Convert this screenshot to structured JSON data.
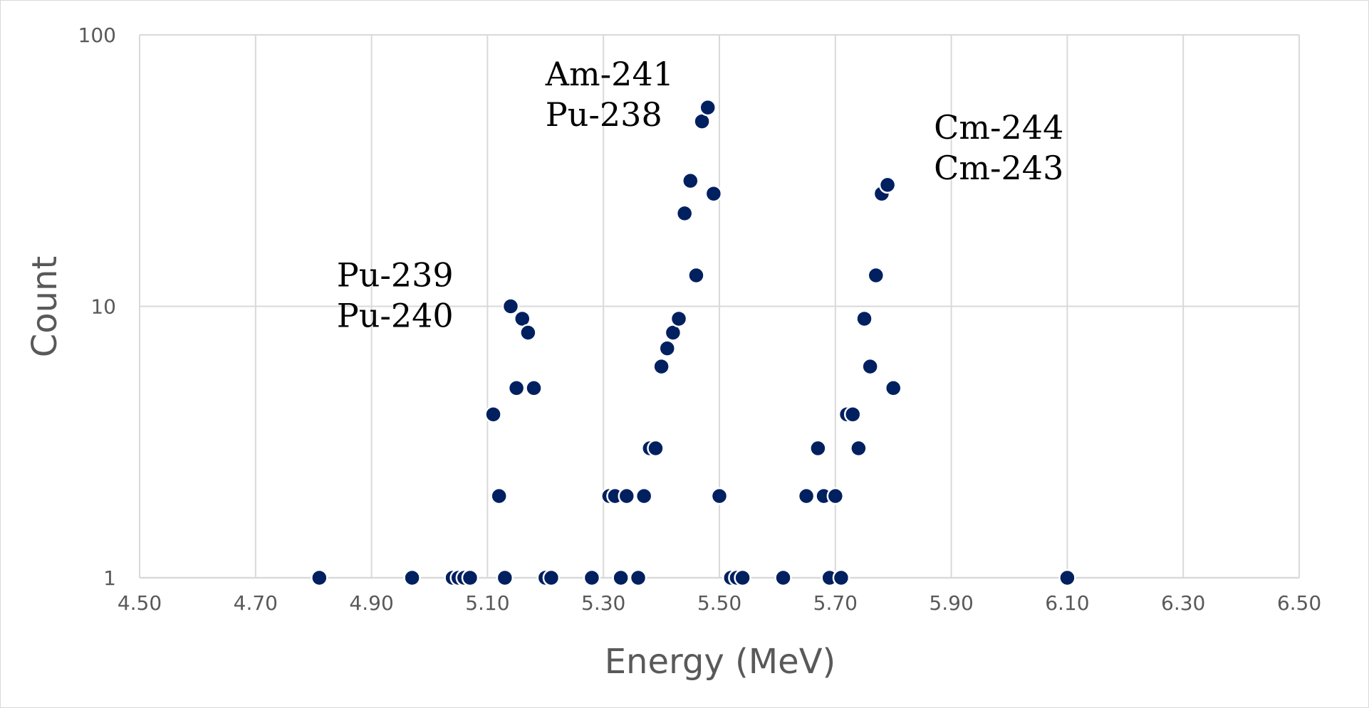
{
  "chart_data": {
    "type": "scatter",
    "title": "",
    "xlabel": "Energy (MeV)",
    "ylabel": "Count",
    "xlim": [
      4.5,
      6.5
    ],
    "ylim": [
      1,
      100
    ],
    "yscale": "log",
    "grid": true,
    "legend": "none",
    "x_ticks": [
      "4.50",
      "4.70",
      "4.90",
      "5.10",
      "5.30",
      "5.50",
      "5.70",
      "5.90",
      "6.10",
      "6.30",
      "6.50"
    ],
    "y_ticks": [
      "1",
      "10",
      "100"
    ],
    "marker_color": "#002060",
    "annotations": [
      {
        "lines": [
          "Pu-239",
          "Pu-240"
        ],
        "x": 4.84,
        "y": 10
      },
      {
        "lines": [
          "Am-241",
          "Pu-238"
        ],
        "x": 5.2,
        "y": 55
      },
      {
        "lines": [
          "Cm-244",
          "Cm-243"
        ],
        "x": 5.87,
        "y": 35
      }
    ],
    "series": [
      {
        "name": "Counts",
        "points": [
          {
            "x": 4.81,
            "y": 1
          },
          {
            "x": 4.97,
            "y": 1
          },
          {
            "x": 5.04,
            "y": 1
          },
          {
            "x": 5.05,
            "y": 1
          },
          {
            "x": 5.06,
            "y": 1
          },
          {
            "x": 5.07,
            "y": 1
          },
          {
            "x": 5.13,
            "y": 1
          },
          {
            "x": 5.2,
            "y": 1
          },
          {
            "x": 5.21,
            "y": 1
          },
          {
            "x": 5.28,
            "y": 1
          },
          {
            "x": 5.33,
            "y": 1
          },
          {
            "x": 5.36,
            "y": 1
          },
          {
            "x": 5.52,
            "y": 1
          },
          {
            "x": 5.53,
            "y": 1
          },
          {
            "x": 5.54,
            "y": 1
          },
          {
            "x": 5.61,
            "y": 1
          },
          {
            "x": 5.69,
            "y": 1
          },
          {
            "x": 5.71,
            "y": 1
          },
          {
            "x": 6.1,
            "y": 1
          },
          {
            "x": 5.11,
            "y": 4
          },
          {
            "x": 5.12,
            "y": 2
          },
          {
            "x": 5.14,
            "y": 10
          },
          {
            "x": 5.15,
            "y": 5
          },
          {
            "x": 5.16,
            "y": 9
          },
          {
            "x": 5.17,
            "y": 8
          },
          {
            "x": 5.18,
            "y": 5
          },
          {
            "x": 5.31,
            "y": 2
          },
          {
            "x": 5.32,
            "y": 2
          },
          {
            "x": 5.34,
            "y": 2
          },
          {
            "x": 5.37,
            "y": 2
          },
          {
            "x": 5.38,
            "y": 3
          },
          {
            "x": 5.39,
            "y": 3
          },
          {
            "x": 5.4,
            "y": 6
          },
          {
            "x": 5.41,
            "y": 7
          },
          {
            "x": 5.42,
            "y": 8
          },
          {
            "x": 5.43,
            "y": 9
          },
          {
            "x": 5.44,
            "y": 22
          },
          {
            "x": 5.45,
            "y": 29
          },
          {
            "x": 5.46,
            "y": 13
          },
          {
            "x": 5.47,
            "y": 48
          },
          {
            "x": 5.48,
            "y": 54
          },
          {
            "x": 5.49,
            "y": 26
          },
          {
            "x": 5.5,
            "y": 2
          },
          {
            "x": 5.65,
            "y": 2
          },
          {
            "x": 5.67,
            "y": 3
          },
          {
            "x": 5.68,
            "y": 2
          },
          {
            "x": 5.7,
            "y": 2
          },
          {
            "x": 5.72,
            "y": 4
          },
          {
            "x": 5.73,
            "y": 4
          },
          {
            "x": 5.74,
            "y": 3
          },
          {
            "x": 5.75,
            "y": 9
          },
          {
            "x": 5.76,
            "y": 6
          },
          {
            "x": 5.77,
            "y": 13
          },
          {
            "x": 5.78,
            "y": 26
          },
          {
            "x": 5.79,
            "y": 28
          },
          {
            "x": 5.8,
            "y": 5
          }
        ]
      }
    ]
  }
}
